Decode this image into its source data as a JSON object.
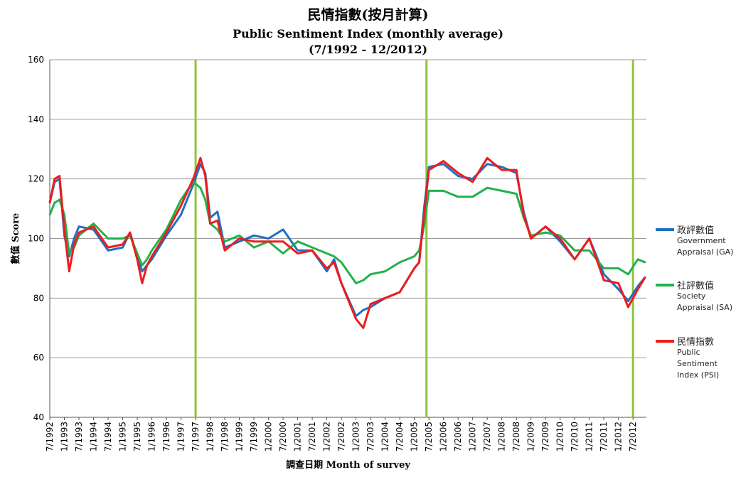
{
  "chart_title": {
    "zh": "民情指數(按月計算)",
    "en": "Public Sentiment Index (monthly average)",
    "range": "(7/1992 - 12/2012)"
  },
  "legend": [
    {
      "zh": "政評數值",
      "en": "Government Appraisal (GA)"
    },
    {
      "zh": "社評數值",
      "en": "Society Appraisal (SA)"
    },
    {
      "zh": "民情指數",
      "en": "Public Sentiment Index (PSI)"
    }
  ],
  "chart_data": {
    "type": "line",
    "title": "Public Sentiment Index (monthly average)",
    "xlabel": "調查日期 Month of survey",
    "ylabel": "數值 Score",
    "ylim": [
      40,
      160
    ],
    "yticks": [
      40,
      60,
      80,
      100,
      120,
      140,
      160
    ],
    "x_tick_labels": [
      "7/1992",
      "1/1993",
      "7/1993",
      "1/1994",
      "7/1994",
      "1/1995",
      "7/1995",
      "1/1996",
      "7/1996",
      "1/1997",
      "7/1997",
      "1/1998",
      "7/1998",
      "1/1999",
      "7/1999",
      "1/2000",
      "7/2000",
      "1/2001",
      "7/2001",
      "1/2002",
      "7/2002",
      "1/2003",
      "7/2003",
      "1/2004",
      "7/2004",
      "1/2005",
      "7/2005",
      "1/2006",
      "7/2006",
      "1/2007",
      "7/2007",
      "1/2008",
      "7/2008",
      "1/2009",
      "7/2009",
      "1/2010",
      "7/2010",
      "1/2011",
      "7/2011",
      "1/2012",
      "7/2012"
    ],
    "grid": "horizontal",
    "legend_position": "right",
    "colors": {
      "GA": "#1f6fc6",
      "SA": "#22b14c",
      "PSI": "#ee1c1c",
      "markers": "#8dc63f"
    },
    "vertical_markers": [
      "7/1997",
      "6/2005",
      "7/2012"
    ],
    "series": [
      {
        "name": "政評數值 Government Appraisal (GA)",
        "color": "#1f6fc6",
        "points": [
          [
            "7/1992",
            112
          ],
          [
            "9/1992",
            119
          ],
          [
            "11/1992",
            120
          ],
          [
            "1/1993",
            101
          ],
          [
            "3/1993",
            94
          ],
          [
            "5/1993",
            100
          ],
          [
            "7/1993",
            104
          ],
          [
            "1/1994",
            103
          ],
          [
            "7/1994",
            96
          ],
          [
            "1/1995",
            97
          ],
          [
            "4/1995",
            102
          ],
          [
            "7/1995",
            94
          ],
          [
            "9/1995",
            89
          ],
          [
            "11/1995",
            91
          ],
          [
            "1/1996",
            93
          ],
          [
            "7/1996",
            101
          ],
          [
            "1/1997",
            108
          ],
          [
            "6/1997",
            118
          ],
          [
            "9/1997",
            125
          ],
          [
            "11/1997",
            122
          ],
          [
            "1/1998",
            107
          ],
          [
            "4/1998",
            109
          ],
          [
            "7/1998",
            97
          ],
          [
            "1/1999",
            99
          ],
          [
            "7/1999",
            101
          ],
          [
            "1/2000",
            100
          ],
          [
            "7/2000",
            103
          ],
          [
            "1/2001",
            96
          ],
          [
            "7/2001",
            96
          ],
          [
            "1/2002",
            89
          ],
          [
            "4/2002",
            93
          ],
          [
            "7/2002",
            85
          ],
          [
            "1/2003",
            74
          ],
          [
            "4/2003",
            76
          ],
          [
            "7/2003",
            77
          ],
          [
            "1/2004",
            80
          ],
          [
            "7/2004",
            82
          ],
          [
            "1/2005",
            90
          ],
          [
            "3/2005",
            92
          ],
          [
            "5/2005",
            110
          ],
          [
            "7/2005",
            124
          ],
          [
            "1/2006",
            125
          ],
          [
            "7/2006",
            121
          ],
          [
            "1/2007",
            120
          ],
          [
            "7/2007",
            125
          ],
          [
            "1/2008",
            124
          ],
          [
            "7/2008",
            122
          ],
          [
            "10/2008",
            109
          ],
          [
            "1/2009",
            100
          ],
          [
            "7/2009",
            104
          ],
          [
            "1/2010",
            99
          ],
          [
            "7/2010",
            93
          ],
          [
            "1/2011",
            100
          ],
          [
            "7/2011",
            88
          ],
          [
            "1/2012",
            83
          ],
          [
            "5/2012",
            79
          ],
          [
            "9/2012",
            84
          ],
          [
            "12/2012",
            87
          ]
        ]
      },
      {
        "name": "社評數值 Society Appraisal (SA)",
        "color": "#22b14c",
        "points": [
          [
            "7/1992",
            108
          ],
          [
            "9/1992",
            112
          ],
          [
            "11/1992",
            113
          ],
          [
            "1/1993",
            108
          ],
          [
            "3/1993",
            95
          ],
          [
            "5/1993",
            97
          ],
          [
            "7/1993",
            101
          ],
          [
            "1/1994",
            105
          ],
          [
            "7/1994",
            100
          ],
          [
            "1/1995",
            100
          ],
          [
            "4/1995",
            101
          ],
          [
            "7/1995",
            95
          ],
          [
            "9/1995",
            91
          ],
          [
            "11/1995",
            93
          ],
          [
            "1/1996",
            96
          ],
          [
            "7/1996",
            103
          ],
          [
            "1/1997",
            113
          ],
          [
            "6/1997",
            119
          ],
          [
            "9/1997",
            117
          ],
          [
            "11/1997",
            113
          ],
          [
            "1/1998",
            105
          ],
          [
            "4/1998",
            103
          ],
          [
            "7/1998",
            99
          ],
          [
            "1/1999",
            101
          ],
          [
            "7/1999",
            97
          ],
          [
            "1/2000",
            99
          ],
          [
            "7/2000",
            95
          ],
          [
            "1/2001",
            99
          ],
          [
            "7/2001",
            97
          ],
          [
            "1/2002",
            95
          ],
          [
            "4/2002",
            94
          ],
          [
            "7/2002",
            92
          ],
          [
            "1/2003",
            85
          ],
          [
            "4/2003",
            86
          ],
          [
            "7/2003",
            88
          ],
          [
            "1/2004",
            89
          ],
          [
            "7/2004",
            92
          ],
          [
            "1/2005",
            94
          ],
          [
            "3/2005",
            96
          ],
          [
            "5/2005",
            104
          ],
          [
            "7/2005",
            116
          ],
          [
            "1/2006",
            116
          ],
          [
            "7/2006",
            114
          ],
          [
            "1/2007",
            114
          ],
          [
            "7/2007",
            117
          ],
          [
            "1/2008",
            116
          ],
          [
            "7/2008",
            115
          ],
          [
            "10/2008",
            107
          ],
          [
            "1/2009",
            101
          ],
          [
            "7/2009",
            102
          ],
          [
            "1/2010",
            101
          ],
          [
            "7/2010",
            96
          ],
          [
            "1/2011",
            96
          ],
          [
            "7/2011",
            90
          ],
          [
            "1/2012",
            90
          ],
          [
            "5/2012",
            88
          ],
          [
            "9/2012",
            93
          ],
          [
            "12/2012",
            92
          ]
        ]
      },
      {
        "name": "民情指數 Public Sentiment Index (PSI)",
        "color": "#ee1c1c",
        "points": [
          [
            "7/1992",
            112
          ],
          [
            "9/1992",
            120
          ],
          [
            "11/1992",
            121
          ],
          [
            "1/1993",
            103
          ],
          [
            "3/1993",
            89
          ],
          [
            "5/1993",
            98
          ],
          [
            "7/1993",
            102
          ],
          [
            "1/1994",
            104
          ],
          [
            "7/1994",
            97
          ],
          [
            "1/1995",
            98
          ],
          [
            "4/1995",
            102
          ],
          [
            "7/1995",
            93
          ],
          [
            "9/1995",
            85
          ],
          [
            "11/1995",
            91
          ],
          [
            "1/1996",
            94
          ],
          [
            "7/1996",
            102
          ],
          [
            "1/1997",
            111
          ],
          [
            "6/1997",
            120
          ],
          [
            "9/1997",
            127
          ],
          [
            "11/1997",
            121
          ],
          [
            "1/1998",
            105
          ],
          [
            "4/1998",
            106
          ],
          [
            "7/1998",
            96
          ],
          [
            "1/1999",
            100
          ],
          [
            "7/1999",
            99
          ],
          [
            "1/2000",
            99
          ],
          [
            "7/2000",
            99
          ],
          [
            "1/2001",
            95
          ],
          [
            "7/2001",
            96
          ],
          [
            "1/2002",
            90
          ],
          [
            "4/2002",
            92
          ],
          [
            "7/2002",
            85
          ],
          [
            "1/2003",
            73
          ],
          [
            "4/2003",
            70
          ],
          [
            "7/2003",
            78
          ],
          [
            "1/2004",
            80
          ],
          [
            "7/2004",
            82
          ],
          [
            "1/2005",
            90
          ],
          [
            "3/2005",
            92
          ],
          [
            "5/2005",
            108
          ],
          [
            "7/2005",
            123
          ],
          [
            "1/2006",
            126
          ],
          [
            "7/2006",
            122
          ],
          [
            "1/2007",
            119
          ],
          [
            "7/2007",
            127
          ],
          [
            "1/2008",
            123
          ],
          [
            "7/2008",
            123
          ],
          [
            "10/2008",
            108
          ],
          [
            "1/2009",
            100
          ],
          [
            "7/2009",
            104
          ],
          [
            "1/2010",
            100
          ],
          [
            "7/2010",
            93
          ],
          [
            "1/2011",
            100
          ],
          [
            "7/2011",
            86
          ],
          [
            "1/2012",
            85
          ],
          [
            "5/2012",
            77
          ],
          [
            "9/2012",
            83
          ],
          [
            "12/2012",
            87
          ]
        ]
      }
    ]
  }
}
